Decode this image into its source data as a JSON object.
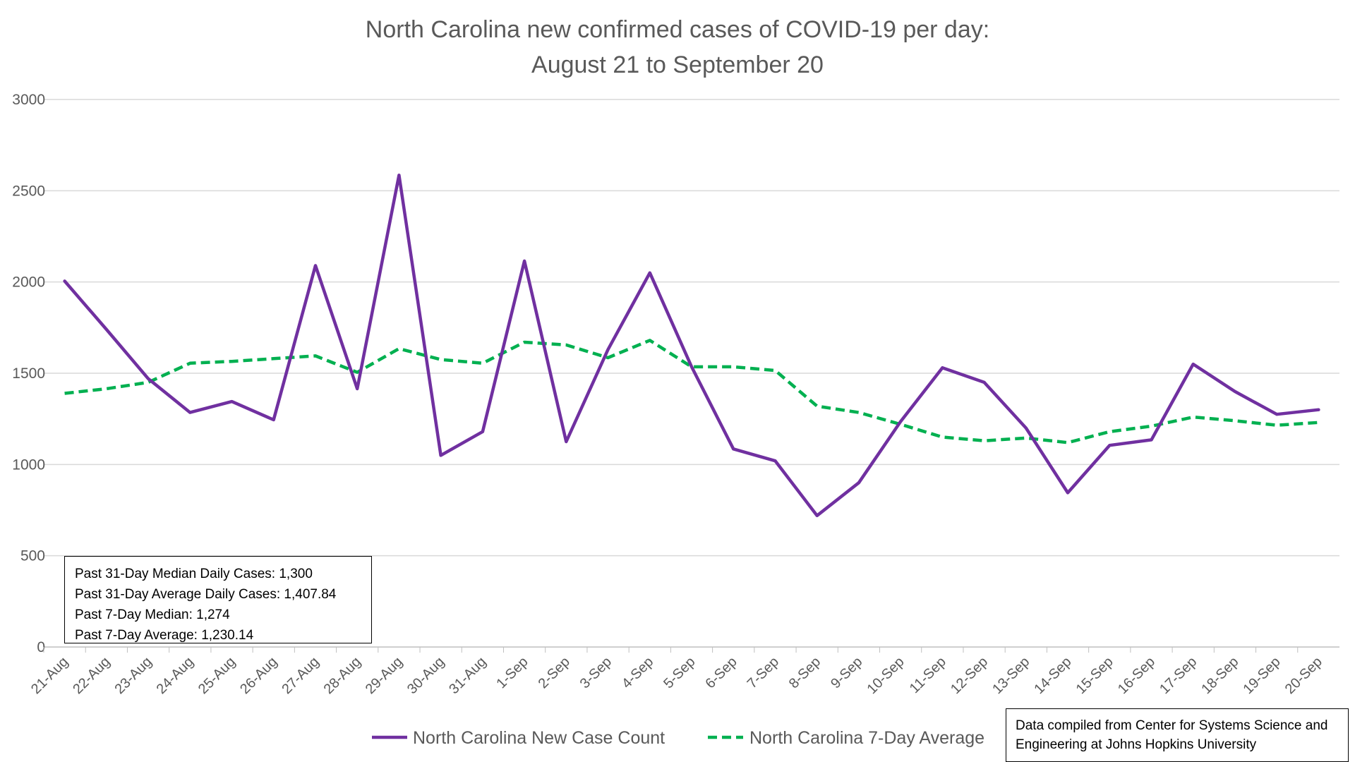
{
  "chart_data": {
    "type": "line",
    "title": "North Carolina new confirmed cases of COVID-19 per day:",
    "subtitle": "August 21 to September 20",
    "categories": [
      "21-Aug",
      "22-Aug",
      "23-Aug",
      "24-Aug",
      "25-Aug",
      "26-Aug",
      "27-Aug",
      "28-Aug",
      "29-Aug",
      "30-Aug",
      "31-Aug",
      "1-Sep",
      "2-Sep",
      "3-Sep",
      "4-Sep",
      "5-Sep",
      "6-Sep",
      "7-Sep",
      "8-Sep",
      "9-Sep",
      "10-Sep",
      "11-Sep",
      "12-Sep",
      "13-Sep",
      "14-Sep",
      "15-Sep",
      "16-Sep",
      "17-Sep",
      "18-Sep",
      "19-Sep",
      "20-Sep"
    ],
    "ylim": [
      0,
      3000
    ],
    "yticks": [
      0,
      500,
      1000,
      1500,
      2000,
      2500,
      3000
    ],
    "grid": true,
    "legend_position": "bottom",
    "series": [
      {
        "name": "North Carolina New Case Count",
        "color": "#7030A0",
        "style": "solid",
        "values": [
          2005,
          1740,
          1470,
          1285,
          1345,
          1245,
          2090,
          1415,
          2585,
          1050,
          1180,
          2115,
          1125,
          1630,
          2050,
          1535,
          1085,
          1020,
          720,
          900,
          1235,
          1530,
          1450,
          1200,
          845,
          1105,
          1135,
          1550,
          1400,
          1275,
          1300
        ]
      },
      {
        "name": "North Carolina 7-Day Average",
        "color": "#00B050",
        "style": "dashed",
        "values": [
          1390,
          1415,
          1450,
          1555,
          1565,
          1580,
          1595,
          1505,
          1635,
          1575,
          1555,
          1670,
          1655,
          1585,
          1680,
          1535,
          1535,
          1515,
          1320,
          1285,
          1220,
          1150,
          1130,
          1145,
          1120,
          1180,
          1210,
          1260,
          1240,
          1215,
          1230
        ]
      }
    ]
  },
  "stats_box": {
    "lines": [
      "Past 31-Day Median Daily Cases: 1,300",
      "Past 31-Day Average Daily Cases: 1,407.84",
      "Past 7-Day Median: 1,274",
      "Past 7-Day Average: 1,230.14"
    ]
  },
  "source_note": {
    "lines": [
      "Data compiled from Center for Systems Science and",
      "Engineering at Johns Hopkins University"
    ]
  }
}
